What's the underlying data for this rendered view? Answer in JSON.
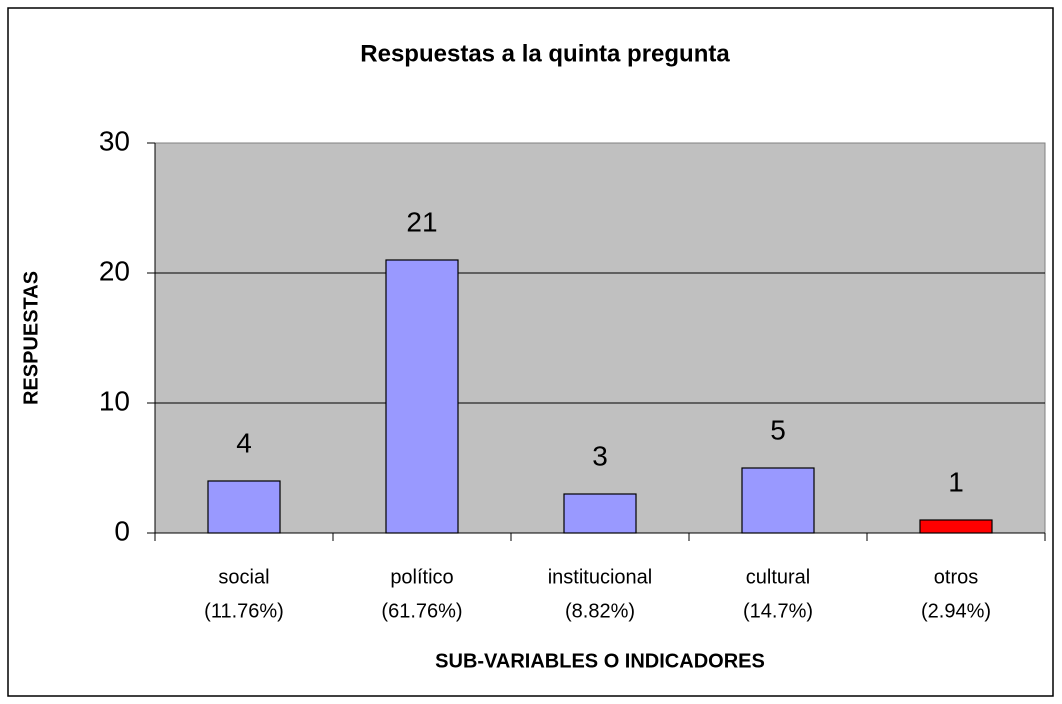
{
  "chart_data": {
    "type": "bar",
    "title": "Respuestas a la quinta pregunta",
    "x_label": "SUB-VARIABLES O INDICADORES",
    "y_label": "RESPUESTAS",
    "categories": [
      [
        "social",
        "(11.76%)"
      ],
      [
        "político",
        "(61.76%)"
      ],
      [
        "institucional",
        "(8.82%)"
      ],
      [
        "cultural",
        "(14.7%)"
      ],
      [
        "otros",
        "(2.94%)"
      ]
    ],
    "values": [
      4,
      21,
      3,
      5,
      1
    ],
    "colors": [
      "#9999ff",
      "#9999ff",
      "#9999ff",
      "#9999ff",
      "#ff0000"
    ],
    "plot_background": "#c0c0c0",
    "ylim": [
      0,
      30
    ],
    "yticks": [
      0,
      10,
      20,
      30
    ],
    "grid": true
  }
}
